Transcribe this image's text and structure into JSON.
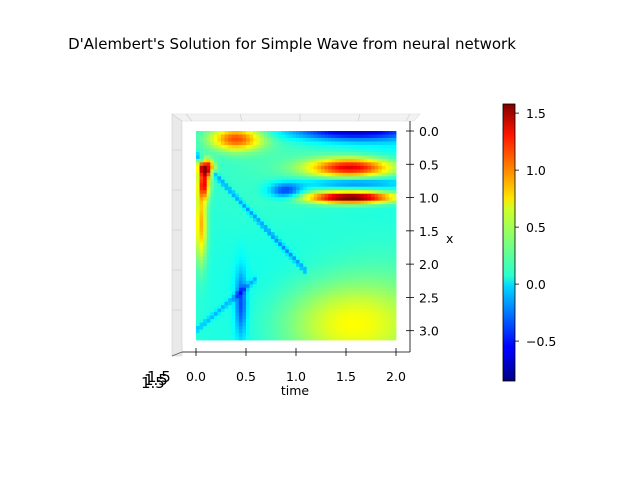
{
  "chart_data": {
    "type": "heatmap",
    "title": "D'Alembert's Solution for Simple Wave from neural network",
    "xlabel": "time",
    "ylabel": "x",
    "x_ticks": [
      "0.0",
      "0.5",
      "1.0",
      "1.5",
      "2.0"
    ],
    "y_ticks": [
      "0.0",
      "0.5",
      "1.0",
      "1.5",
      "2.0",
      "2.5",
      "3.0"
    ],
    "z_tick_overlap": "1.5",
    "xlim": [
      0,
      2.0
    ],
    "ylim": [
      0,
      3.14
    ],
    "colorbar": {
      "ticks": [
        "1.5",
        "1.0",
        "0.5",
        "0.0",
        "−0.5"
      ],
      "tick_values": [
        1.5,
        1.0,
        0.5,
        0.0,
        -0.5
      ],
      "range": [
        -0.85,
        1.58
      ],
      "colormap": "jet"
    },
    "features": [
      {
        "t": 0.1,
        "x": 0.55,
        "value": 1.5,
        "sx": 0.05,
        "sy": 0.08
      },
      {
        "t": 0.08,
        "x": 0.8,
        "value": 1.0,
        "sx": 0.04,
        "sy": 0.15
      },
      {
        "t": 0.4,
        "x": 0.12,
        "value": 0.9,
        "sx": 0.18,
        "sy": 0.12
      },
      {
        "t": 0.05,
        "x": 1.4,
        "value": 0.7,
        "sx": 0.04,
        "sy": 0.4
      },
      {
        "t": 0.9,
        "x": 0.9,
        "value": -0.6,
        "sx": 0.12,
        "sy": 0.08
      },
      {
        "t": 1.55,
        "x": 1.0,
        "value": 1.55,
        "sx": 0.3,
        "sy": 0.06
      },
      {
        "t": 1.55,
        "x": 0.55,
        "value": 1.2,
        "sx": 0.3,
        "sy": 0.1
      },
      {
        "t": 1.55,
        "x": 0.78,
        "value": -0.4,
        "sx": 0.35,
        "sy": 0.05
      },
      {
        "t": 1.55,
        "x": 0.0,
        "value": -0.8,
        "sx": 0.45,
        "sy": 0.1
      },
      {
        "t": 1.5,
        "x": 2.9,
        "value": 0.5,
        "sx": 0.5,
        "sy": 0.45
      },
      {
        "t": 0.45,
        "x": 2.6,
        "value": -0.5,
        "sx": 0.04,
        "sy": 0.35
      }
    ]
  }
}
